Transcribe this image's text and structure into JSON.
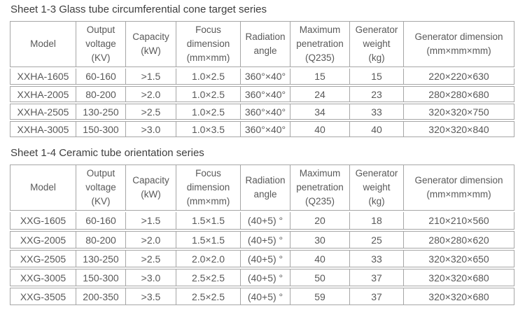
{
  "colors": {
    "border": "#a6a6a6",
    "cell_text": "#595959",
    "title_text": "#3e3e3e",
    "page_bg": "#ffffff"
  },
  "tables": [
    {
      "id": "glass-tube-series",
      "title": "Sheet 1-3 Glass tube circumferential cone target series",
      "headers": [
        {
          "id": "model",
          "label": "Model"
        },
        {
          "id": "output-voltage",
          "label": "Output\nvoltage\n(KV)"
        },
        {
          "id": "capacity",
          "label": "Capacity\n(kW)"
        },
        {
          "id": "focus-dimension",
          "label": "Focus\ndimension\n(mm×mm)"
        },
        {
          "id": "radiation-angle",
          "label": "Radiation\nangle"
        },
        {
          "id": "maximum-penetration",
          "label": "Maximum\npenetration\n(Q235)"
        },
        {
          "id": "generator-weight",
          "label": "Generator\nweight\n(kg)"
        },
        {
          "id": "generator-dimension",
          "label": "Generator dimension\n(mm×mm×mm)"
        }
      ],
      "rows": [
        [
          "XXHA-1605",
          "60-160",
          ">1.5",
          "1.0×2.5",
          "360°×40°",
          "15",
          "15",
          "220×220×630"
        ],
        [
          "XXHA-2005",
          "80-200",
          ">2.0",
          "1.0×2.5",
          "360°×40°",
          "24",
          "23",
          "280×280×680"
        ],
        [
          "XXHA-2505",
          "130-250",
          ">2.5",
          "1.0×2.5",
          "360°×40°",
          "34",
          "33",
          "320×320×750"
        ],
        [
          "XXHA-3005",
          "150-300",
          ">3.0",
          "1.0×3.5",
          "360°×40°",
          "40",
          "40",
          "320×320×840"
        ]
      ]
    },
    {
      "id": "ceramic-tube-series",
      "title": "Sheet 1-4 Ceramic tube orientation series",
      "headers": [
        {
          "id": "model",
          "label": "Model"
        },
        {
          "id": "output-voltage",
          "label": "Output\nvoltage\n(KV)"
        },
        {
          "id": "capacity",
          "label": "Capacity\n(kW)"
        },
        {
          "id": "focus-dimension",
          "label": "Focus\ndimension\n(mm×mm)"
        },
        {
          "id": "radiation-angle",
          "label": "Radiation\nangle"
        },
        {
          "id": "maximum-penetration",
          "label": "Maximum\npenetration\n(Q235)"
        },
        {
          "id": "generator-weight",
          "label": "Generator\nweight\n(kg)"
        },
        {
          "id": "generator-dimension",
          "label": "Generator dimension\n(mm×mm×mm)"
        }
      ],
      "rows": [
        [
          "XXG-1605",
          "60-160",
          ">1.5",
          "1.5×1.5",
          "(40+5) °",
          "20",
          "18",
          "210×210×560"
        ],
        [
          "XXG-2005",
          "80-200",
          ">2.0",
          "1.5×1.5",
          "(40+5) °",
          "30",
          "25",
          "280×280×620"
        ],
        [
          "XXG-2505",
          "130-250",
          ">2.5",
          "2.0×2.0",
          "(40+5) °",
          "40",
          "33",
          "320×320×650"
        ],
        [
          "XXG-3005",
          "150-300",
          ">3.0",
          "2.5×2.5",
          "(40+5) °",
          "50",
          "37",
          "320×320×680"
        ],
        [
          "XXG-3505",
          "200-350",
          ">3.5",
          "2.5×2.5",
          "(40+5) °",
          "59",
          "37",
          "320×320×680"
        ]
      ]
    }
  ]
}
